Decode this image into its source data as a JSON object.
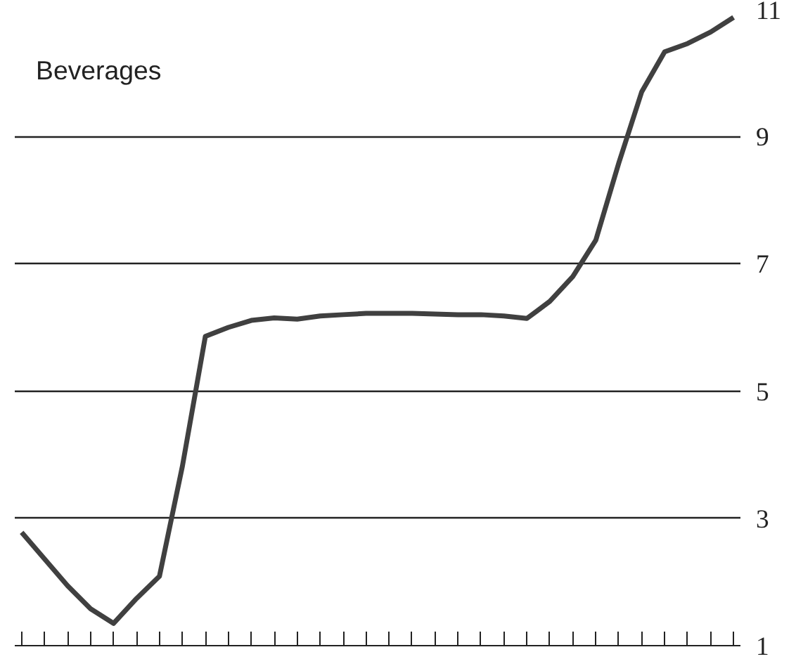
{
  "chart_data": {
    "type": "line",
    "title": "Beverages",
    "categories": [
      null,
      null,
      null,
      null,
      null,
      null,
      null,
      null,
      null,
      null,
      null,
      null,
      null,
      null,
      null,
      null,
      null,
      null,
      null,
      null,
      null,
      null,
      null,
      null,
      null,
      null,
      null,
      null,
      null,
      null,
      null,
      null
    ],
    "series": [
      {
        "color": "#404040",
        "values": [
          2.78,
          2.36,
          1.94,
          1.58,
          1.35,
          1.74,
          2.09,
          3.82,
          5.86,
          6.0,
          6.11,
          6.15,
          6.13,
          6.18,
          6.2,
          6.22,
          6.22,
          6.22,
          6.21,
          6.2,
          6.2,
          6.18,
          6.14,
          6.41,
          6.8,
          7.37,
          8.58,
          9.7,
          10.33,
          10.46,
          10.64,
          10.87
        ]
      }
    ],
    "ylim": [
      1,
      11
    ],
    "yticks": [
      1,
      3,
      5,
      7,
      9,
      11
    ],
    "grid": "y",
    "tick_labels": "y",
    "line_style": "solid",
    "marker": "none"
  }
}
